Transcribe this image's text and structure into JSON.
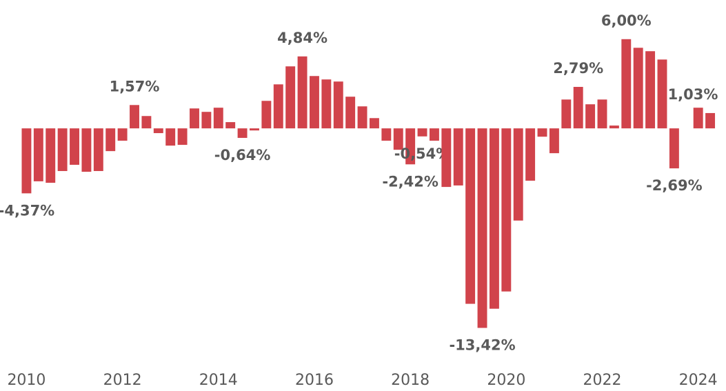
{
  "chart_data": {
    "type": "bar",
    "color": "#d1434b",
    "x": [
      2010,
      2010.25,
      2010.5,
      2010.75,
      2011,
      2011.25,
      2011.5,
      2011.75,
      2012,
      2012.25,
      2012.5,
      2012.75,
      2013,
      2013.25,
      2013.5,
      2013.75,
      2014,
      2014.25,
      2014.5,
      2014.75,
      2015,
      2015.25,
      2015.5,
      2015.75,
      2016,
      2016.25,
      2016.5,
      2016.75,
      2017,
      2017.25,
      2017.5,
      2017.75,
      2018,
      2018.25,
      2018.5,
      2018.75,
      2019,
      2019.25,
      2019.5,
      2019.75,
      2020,
      2020.25,
      2020.5,
      2020.75,
      2021,
      2021.25,
      2021.5,
      2021.75,
      2022,
      2022.25,
      2022.5,
      2022.75,
      2023,
      2023.25,
      2023.5,
      2023.75,
      2024,
      2024.25
    ],
    "values": [
      -4.37,
      -3.56,
      -3.66,
      -2.87,
      -2.45,
      -2.92,
      -2.87,
      -1.53,
      -0.83,
      1.57,
      0.83,
      -0.32,
      -1.16,
      -1.11,
      1.34,
      1.11,
      1.39,
      0.42,
      -0.64,
      -0.14,
      1.85,
      2.96,
      4.17,
      4.84,
      3.52,
      3.29,
      3.15,
      2.13,
      1.48,
      0.69,
      -0.83,
      -1.44,
      -2.42,
      -0.54,
      -0.83,
      -3.94,
      -3.84,
      -11.8,
      -13.42,
      -12.13,
      -10.97,
      -6.2,
      -3.52,
      -0.56,
      -1.67,
      1.94,
      2.79,
      1.62,
      1.94,
      0.19,
      6.0,
      5.42,
      5.19,
      4.63,
      -2.69,
      0,
      1.39,
      1.03
    ],
    "value_labels": [
      "-4,37%",
      null,
      null,
      null,
      null,
      null,
      null,
      null,
      null,
      "1,57%",
      null,
      null,
      null,
      null,
      null,
      null,
      null,
      null,
      "-0,64%",
      null,
      null,
      null,
      null,
      "4,84%",
      null,
      null,
      null,
      null,
      null,
      null,
      null,
      null,
      "-2,42%",
      "-0,54%",
      null,
      null,
      null,
      null,
      "-13,42%",
      null,
      null,
      null,
      null,
      null,
      null,
      null,
      "2,79%",
      null,
      null,
      null,
      "6,00%",
      null,
      null,
      null,
      "-2,69%",
      null,
      null,
      "1,03%"
    ],
    "xlim": [
      2009.85,
      2024.45
    ],
    "xticks": [
      2010,
      2012,
      2014,
      2016,
      2018,
      2020,
      2022,
      2024
    ],
    "ylim": [
      -14,
      6.5
    ]
  }
}
